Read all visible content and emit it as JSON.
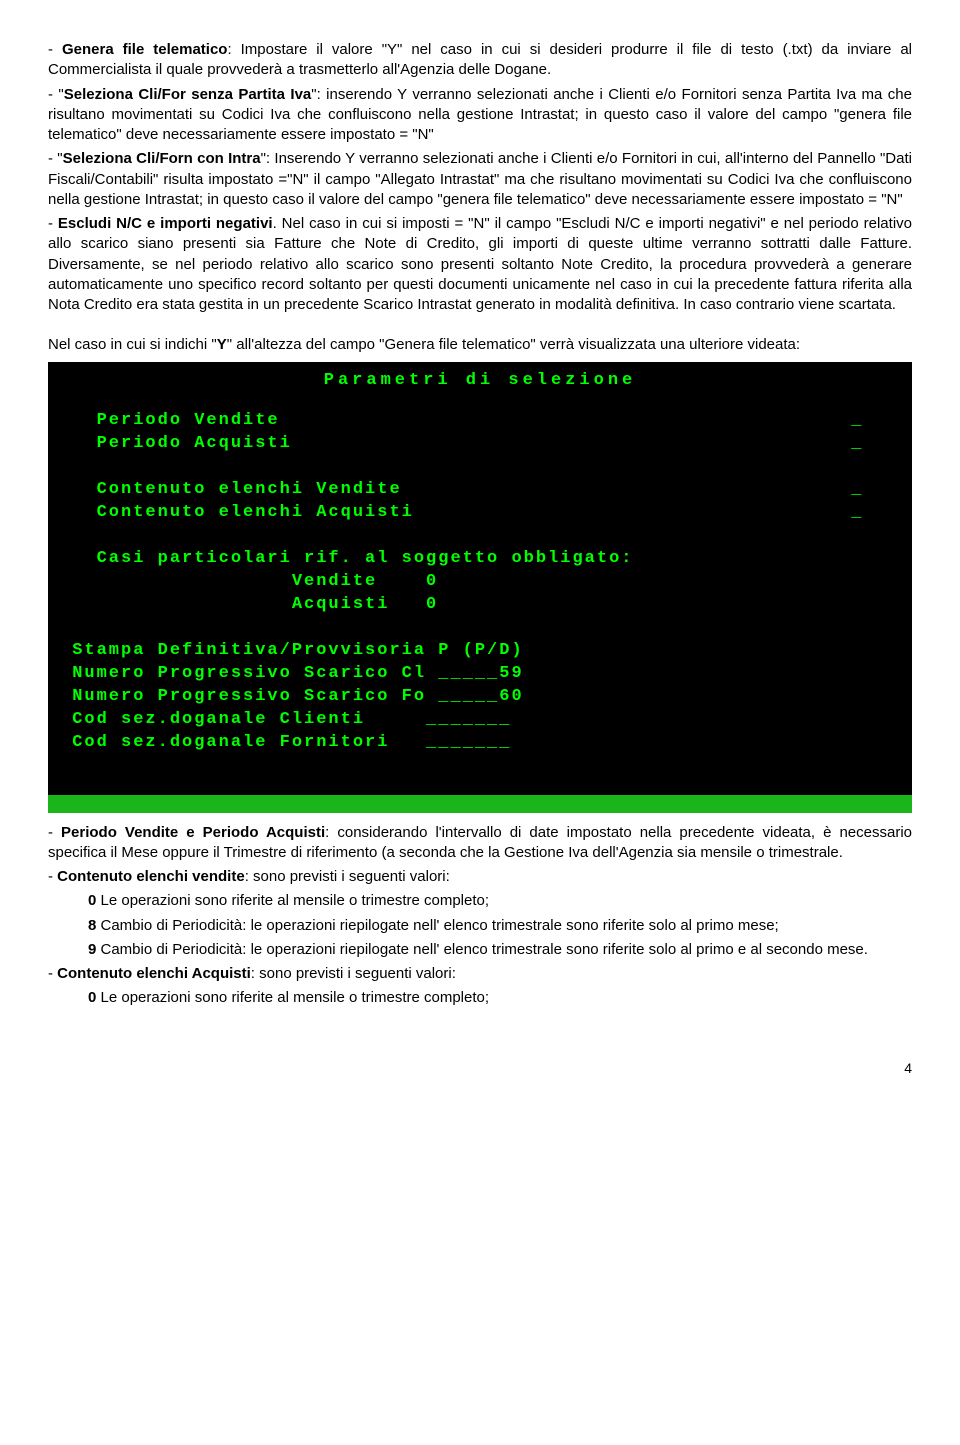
{
  "paragraphs": {
    "p1a": "- ",
    "p1b": "Genera file telematico",
    "p1c": ": Impostare il valore \"Y\" nel caso in cui si desideri produrre il file di testo (.txt) da inviare al Commercialista il quale provvederà a trasmetterlo all'Agenzia delle Dogane.",
    "p2a": "- \"",
    "p2b": "Seleziona Cli/For  senza Partita Iva",
    "p2c": "\": inserendo Y verranno selezionati anche i  Clienti e/o Fornitori senza Partita Iva ma che risultano movimentati su Codici Iva che confluiscono nella gestione Intrastat;  in questo caso il valore del campo \"genera file telematico\" deve necessariamente  essere impostato = \"N\"",
    "p3a": "- \"",
    "p3b": "Seleziona Cli/Forn con Intra",
    "p3c": "\": Inserendo Y verranno selezionati anche i Clienti e/o Fornitori in cui, all'interno del Pannello \"Dati Fiscali/Contabili\" risulta impostato =\"N\" il campo \"Allegato Intrastat\" ma che risultano movimentati su Codici Iva che  confluiscono nella gestione Intrastat;  in questo caso il valore del campo \"genera file telematico\" deve necessariamente  essere impostato = \"N\"",
    "p4a": "- ",
    "p4b": "Escludi N/C e importi negativi",
    "p4c": ". Nel caso in cui si imposti = \"N\" il campo \"Escludi N/C e importi negativi\" e nel periodo relativo allo scarico siano presenti sia Fatture che Note di Credito, gli importi di queste ultime verranno sottratti dalle Fatture. Diversamente, se nel periodo relativo allo scarico sono presenti soltanto Note Credito, la procedura provvederà a generare automaticamente uno specifico record soltanto per questi documenti unicamente nel caso in cui la precedente fattura riferita alla Nota Credito era stata gestita in un precedente Scarico Intrastat generato in modalità definitiva. In caso contrario viene scartata.",
    "p5a": "Nel caso in cui si indichi \"",
    "p5b": "Y",
    "p5c": "\" all'altezza del campo \"Genera file telematico\" verrà visualizzata  una ulteriore videata:"
  },
  "terminal": {
    "title": "Parametri di selezione",
    "rows": [
      {
        "label": "   Periodo Vendite",
        "val": "_   "
      },
      {
        "label": "   Periodo Acquisti",
        "val": "_   "
      },
      {
        "label": " ",
        "val": " "
      },
      {
        "label": "   Contenuto elenchi Vendite",
        "val": "_   "
      },
      {
        "label": "   Contenuto elenchi Acquisti",
        "val": "_   "
      },
      {
        "label": " ",
        "val": " "
      },
      {
        "label": "   Casi particolari rif. al soggetto obbligato:",
        "val": " "
      },
      {
        "label": "                   Vendite    0",
        "val": " "
      },
      {
        "label": "                   Acquisti   0",
        "val": " "
      },
      {
        "label": " ",
        "val": " "
      },
      {
        "label": " Stampa Definitiva/Provvisoria P (P/D)",
        "val": " "
      },
      {
        "label": " Numero Progressivo Scarico Cl _____59",
        "val": " "
      },
      {
        "label": " Numero Progressivo Scarico Fo _____60",
        "val": " "
      },
      {
        "label": " Cod sez.doganale Clienti     _______",
        "val": " "
      },
      {
        "label": " Cod sez.doganale Fornitori   _______",
        "val": " "
      }
    ]
  },
  "post": {
    "p1a": "- ",
    "p1b": "Periodo Vendite e Periodo Acquisti",
    "p1c": ": considerando l'intervallo di date impostato nella precedente videata, è necessario specifica il Mese oppure il Trimestre di riferimento (a seconda che la Gestione Iva dell'Agenzia sia mensile o trimestrale.",
    "p2a": "- ",
    "p2b": "Contenuto elenchi vendite",
    "p2c": ": sono previsti i seguenti valori:",
    "p2l1a": "0",
    "p2l1b": "  Le operazioni sono riferite al mensile o trimestre completo;",
    "p2l2a": "8",
    "p2l2b": " Cambio di Periodicità: le operazioni riepilogate nell' elenco trimestrale sono riferite solo al primo mese;",
    "p2l3a": "9",
    "p2l3b": " Cambio di Periodicità: le operazioni riepilogate nell' elenco trimestrale sono riferite solo al primo e al secondo mese.",
    "p3a": "- ",
    "p3b": "Contenuto elenchi Acquisti",
    "p3c": ": sono previsti i seguenti valori:",
    "p3l1a": "0",
    "p3l1b": "  Le operazioni sono riferite al mensile o trimestre completo;"
  },
  "pageNumber": "4"
}
